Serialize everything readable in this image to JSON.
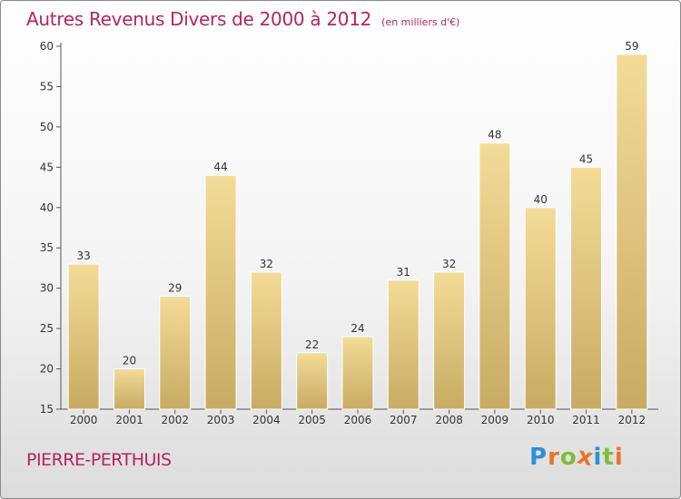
{
  "title": "Autres Revenus Divers de 2000 à 2012",
  "subtitle": "(en milliers d'€)",
  "commune": "PIERRE-PERTHUIS",
  "logo": {
    "text": "Proxiti",
    "letters": [
      {
        "ch": "P",
        "color": "#2e8fd6"
      },
      {
        "ch": "r",
        "color": "#e8752a"
      },
      {
        "ch": "o",
        "color": "#7cbf3a"
      },
      {
        "ch": "x",
        "color": "#e8752a"
      },
      {
        "ch": "i",
        "color": "#2e8fd6"
      },
      {
        "ch": "t",
        "color": "#7cbf3a"
      },
      {
        "ch": "i",
        "color": "#e8752a"
      }
    ]
  },
  "colors": {
    "title": "#b5245d",
    "bar_top": "#f3dc98",
    "bar_bottom": "#c8ab62",
    "axis": "#555555"
  },
  "chart_data": {
    "type": "bar",
    "title": "Autres Revenus Divers de 2000 à 2012",
    "subtitle": "(en milliers d'€)",
    "categories": [
      "2000",
      "2001",
      "2002",
      "2003",
      "2004",
      "2005",
      "2006",
      "2007",
      "2008",
      "2009",
      "2010",
      "2011",
      "2012"
    ],
    "values": [
      33,
      20,
      29,
      44,
      32,
      22,
      24,
      31,
      32,
      48,
      40,
      45,
      59
    ],
    "ylim": [
      15,
      60
    ],
    "yticks": [
      15,
      20,
      25,
      30,
      35,
      40,
      45,
      50,
      55,
      60
    ],
    "grid": false,
    "data_labels": true
  }
}
